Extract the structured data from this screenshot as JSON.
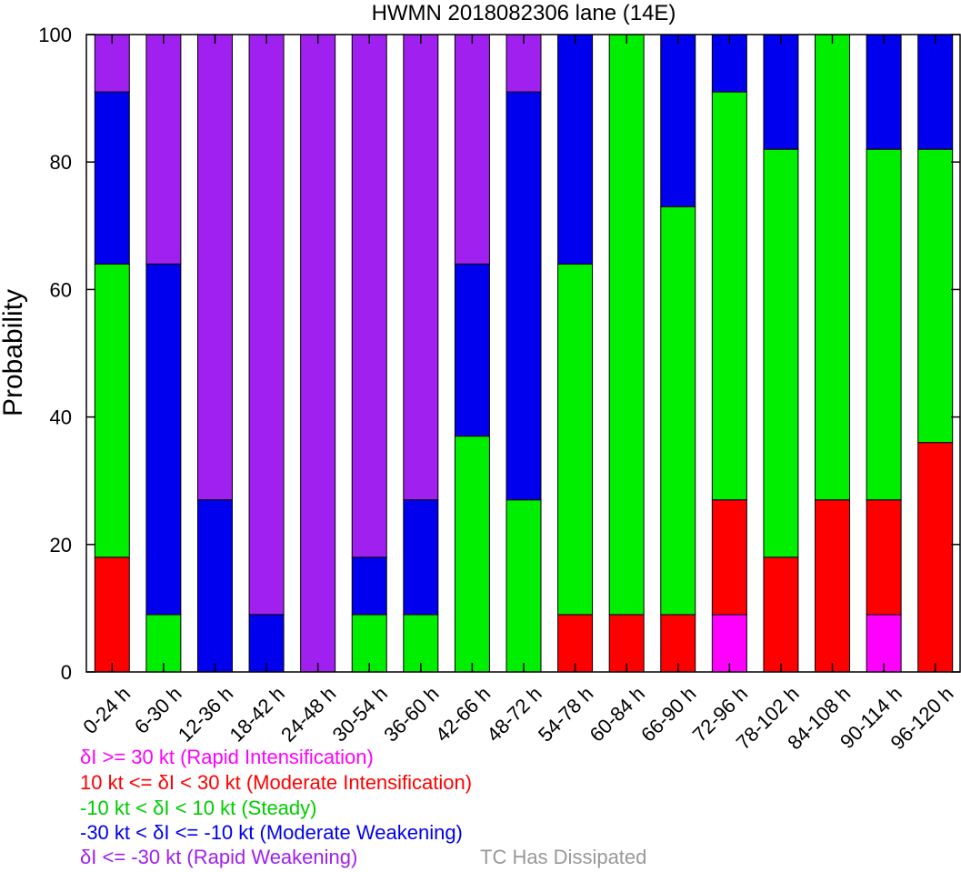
{
  "chart_data": {
    "type": "bar",
    "stacked": true,
    "title": "HWMN 2018082306 lane (14E)",
    "xlabel": "",
    "ylabel": "Probability",
    "ylim": [
      0,
      100
    ],
    "yticks": [
      0,
      20,
      40,
      60,
      80,
      100
    ],
    "grid": false,
    "categories": [
      "0-24 h",
      "6-30 h",
      "12-36 h",
      "18-42 h",
      "24-48 h",
      "30-54 h",
      "36-60 h",
      "42-66 h",
      "48-72 h",
      "54-78 h",
      "60-84 h",
      "66-90 h",
      "72-96 h",
      "78-102 h",
      "84-108 h",
      "90-114 h",
      "96-120 h"
    ],
    "series": [
      {
        "name": "δI >= 30 kt (Rapid Intensification)",
        "color": "#ff00ff",
        "values": [
          0,
          0,
          0,
          0,
          0,
          0,
          0,
          0,
          0,
          0,
          0,
          0,
          9,
          0,
          0,
          9,
          0
        ]
      },
      {
        "name": "10 kt <= δI < 30 kt (Moderate Intensification)",
        "color": "#ff0000",
        "values": [
          18,
          0,
          0,
          0,
          0,
          0,
          0,
          0,
          0,
          9,
          9,
          9,
          18,
          18,
          27,
          18,
          36
        ]
      },
      {
        "name": "-10 kt < δI < 10 kt (Steady)",
        "color": "#00ee00",
        "values": [
          46,
          9,
          0,
          0,
          0,
          9,
          9,
          37,
          27,
          55,
          91,
          64,
          64,
          64,
          73,
          55,
          46
        ]
      },
      {
        "name": "-30 kt < δI <= -10 kt (Moderate Weakening)",
        "color": "#0000ee",
        "values": [
          27,
          55,
          27,
          9,
          0,
          9,
          18,
          27,
          64,
          36,
          0,
          27,
          9,
          18,
          0,
          18,
          18
        ]
      },
      {
        "name": "δI <= -30 kt (Rapid Weakening)",
        "color": "#a020f0",
        "values": [
          9,
          36,
          73,
          91,
          100,
          82,
          73,
          36,
          9,
          0,
          0,
          0,
          0,
          0,
          0,
          0,
          0
        ]
      },
      {
        "name": "TC Has Dissipated",
        "color": "#999999",
        "values": [
          0,
          0,
          0,
          0,
          0,
          0,
          0,
          0,
          0,
          0,
          0,
          0,
          0,
          0,
          0,
          0,
          0
        ]
      }
    ]
  },
  "legend": {
    "items": [
      {
        "text": "δI >= 30 kt (Rapid Intensification)",
        "color": "#ff00ff"
      },
      {
        "text": "10 kt <= δI < 30 kt (Moderate Intensification)",
        "color": "#ff0000"
      },
      {
        "text": "-10 kt < δI < 10 kt (Steady)",
        "color": "#00cc00"
      },
      {
        "text": "-30 kt < δI <= -10 kt (Moderate Weakening)",
        "color": "#0000ee"
      },
      {
        "text": "δI <= -30 kt (Rapid Weakening)",
        "color": "#a020f0"
      }
    ],
    "dissipated": "TC Has Dissipated"
  }
}
